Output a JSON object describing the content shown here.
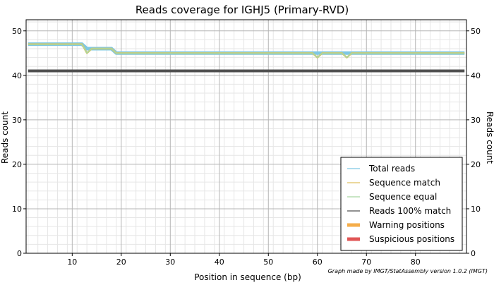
{
  "chart_data": {
    "type": "line",
    "title": "Reads coverage for IGHJ5 (Primary-RVD)",
    "xlabel": "Position in sequence (bp)",
    "ylabel": "Reads count",
    "ylabel_right": "Reads count",
    "xlim": [
      0.6,
      90.4
    ],
    "ylim": [
      0,
      52.5
    ],
    "x_ticks": [
      10,
      20,
      30,
      40,
      50,
      60,
      70,
      80
    ],
    "y_ticks": [
      0,
      10,
      20,
      30,
      40,
      50
    ],
    "grid": true,
    "legend_position": "bottom-right",
    "credit": "Graph made by IMGT/StatAssembly version 1.0.2 (IMGT)",
    "x_start": 1,
    "x_end": 90,
    "series": [
      {
        "name": "Total reads",
        "color": "#7ec8e3",
        "breakpoints": [
          [
            1,
            47
          ],
          [
            12,
            47
          ],
          [
            13,
            46
          ],
          [
            18,
            46
          ],
          [
            19,
            45
          ],
          [
            59,
            45
          ],
          [
            60,
            45
          ],
          [
            61,
            45
          ],
          [
            65,
            45
          ],
          [
            66,
            45
          ],
          [
            67,
            45
          ],
          [
            90,
            45
          ]
        ]
      },
      {
        "name": "Sequence match",
        "color": "#e0c060",
        "breakpoints": [
          [
            1,
            47
          ],
          [
            12,
            47
          ],
          [
            13,
            45
          ],
          [
            14,
            46
          ],
          [
            18,
            46
          ],
          [
            19,
            45
          ],
          [
            59,
            45
          ],
          [
            60,
            44
          ],
          [
            61,
            45
          ],
          [
            65,
            45
          ],
          [
            66,
            44
          ],
          [
            67,
            45
          ],
          [
            90,
            45
          ]
        ]
      },
      {
        "name": "Sequence equal",
        "color": "#a8d8a0",
        "breakpoints": [
          [
            1,
            47
          ],
          [
            12,
            47
          ],
          [
            13,
            45
          ],
          [
            14,
            46
          ],
          [
            18,
            46
          ],
          [
            19,
            45
          ],
          [
            59,
            45
          ],
          [
            60,
            44
          ],
          [
            61,
            45
          ],
          [
            65,
            45
          ],
          [
            66,
            44
          ],
          [
            67,
            45
          ],
          [
            90,
            45
          ]
        ]
      },
      {
        "name": "Reads 100% match",
        "color": "#505050",
        "breakpoints": [
          [
            1,
            41
          ],
          [
            90,
            41
          ]
        ]
      }
    ],
    "extra_legend": [
      {
        "name": "Warning positions",
        "color": "#f5ad4a"
      },
      {
        "name": "Suspicious positions",
        "color": "#e05555"
      }
    ]
  }
}
